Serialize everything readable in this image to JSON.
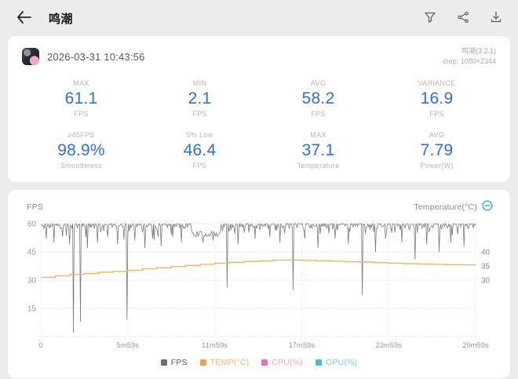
{
  "topbar": {
    "title": "鸣潮",
    "icons": [
      "filter",
      "share",
      "download"
    ]
  },
  "session_card": {
    "timestamp": "2026-03-31 10:43:56",
    "app_version": "鸣潮(3.2.1)",
    "crop_info": "crop: 1080×2344",
    "accent_color": "#2e6fd8",
    "stats_row1": [
      {
        "label": "MAX",
        "value": "61.1",
        "unit": "FPS"
      },
      {
        "label": "MIN",
        "value": "2.1",
        "unit": "FPS"
      },
      {
        "label": "AVG",
        "value": "58.2",
        "unit": "FPS"
      },
      {
        "label": "VARIANCE",
        "value": "16.9",
        "unit": "FPS"
      }
    ],
    "stats_row2": [
      {
        "label": "≥45FPS",
        "value": "98.9%",
        "unit": "Smoothness"
      },
      {
        "label": "5% Low",
        "value": "46.4",
        "unit": "FPS"
      },
      {
        "label": "MAX",
        "value": "37.1",
        "unit": "Temperature"
      },
      {
        "label": "AVG",
        "value": "7.79",
        "unit": "Power(W)"
      }
    ]
  },
  "chart_card": {
    "left_header": "FPS",
    "right_header": "Temperature(°C)",
    "collapse_icon_color": "#4aa8e8"
  },
  "chart_data": {
    "type": "line",
    "title": "FPS / Temperature over time",
    "x_ticks": [
      "0",
      "5m59s",
      "11m59s",
      "17m59s",
      "23m59s",
      "29m59s"
    ],
    "x_range_minutes": [
      0,
      30
    ],
    "grid": "dotted",
    "left_axis": {
      "title": "FPS",
      "ticks": [
        60,
        45,
        30,
        15
      ],
      "range": [
        0,
        60
      ]
    },
    "right_axis": {
      "title": "Temperature(°C)",
      "ticks": [
        40,
        35,
        30
      ]
    },
    "legend_position": "bottom",
    "legend": [
      {
        "label": "FPS",
        "swatch": "#6e6e6e",
        "text": "#5e5e5e"
      },
      {
        "label": "TEMP(°C)",
        "swatch": "#f0a050",
        "text": "#f3b37a"
      },
      {
        "label": "CPU(%)",
        "swatch": "#f06eb8",
        "text": "#f4a3c8"
      },
      {
        "label": "GPU(%)",
        "swatch": "#4db8e8",
        "text": "#7cc8ec"
      }
    ],
    "series": [
      {
        "name": "FPS",
        "color": "#7a7a7a",
        "visible": true,
        "baseline": 60,
        "low_band": {
          "from": 10.4,
          "to": 12.4,
          "level": 54.5
        },
        "drops": [
          [
            0.4,
            52
          ],
          [
            0.9,
            50
          ],
          [
            1.5,
            53
          ],
          [
            2.0,
            49
          ],
          [
            2.26,
            2
          ],
          [
            2.73,
            8
          ],
          [
            3.2,
            47
          ],
          [
            3.9,
            50
          ],
          [
            4.6,
            53
          ],
          [
            5.3,
            49
          ],
          [
            5.94,
            9
          ],
          [
            6.5,
            51
          ],
          [
            7.2,
            47
          ],
          [
            7.7,
            52
          ],
          [
            8.3,
            48
          ],
          [
            9.1,
            53
          ],
          [
            9.7,
            50
          ],
          [
            11.2,
            50
          ],
          [
            11.9,
            51
          ],
          [
            12.87,
            26
          ],
          [
            13.6,
            49
          ],
          [
            14.8,
            52
          ],
          [
            15.8,
            53
          ],
          [
            16.5,
            50
          ],
          [
            17.39,
            25
          ],
          [
            18.2,
            52
          ],
          [
            19.1,
            47
          ],
          [
            20.3,
            52
          ],
          [
            21.2,
            49
          ],
          [
            22.2,
            22
          ],
          [
            23.07,
            45
          ],
          [
            23.8,
            52
          ],
          [
            24.9,
            50
          ],
          [
            25.8,
            41
          ],
          [
            26.6,
            49
          ],
          [
            27.5,
            45
          ],
          [
            28.3,
            50
          ],
          [
            29.2,
            48
          ]
        ]
      },
      {
        "name": "TEMP(°C)",
        "color": "#e9b671",
        "visible": true,
        "points": [
          [
            0,
            31
          ],
          [
            1,
            31.5
          ],
          [
            2,
            32
          ],
          [
            3,
            32.4
          ],
          [
            4,
            32.8
          ],
          [
            5,
            33.1
          ],
          [
            6,
            33.5
          ],
          [
            7,
            34
          ],
          [
            8,
            34.4
          ],
          [
            9,
            34.8
          ],
          [
            10,
            35.2
          ],
          [
            11,
            35.6
          ],
          [
            12,
            36
          ],
          [
            13,
            36.3
          ],
          [
            14,
            36.6
          ],
          [
            15,
            36.8
          ],
          [
            16,
            37.1
          ],
          [
            17,
            37.1
          ],
          [
            18,
            37
          ],
          [
            19,
            36.9
          ],
          [
            20,
            36.7
          ],
          [
            21,
            36.5
          ],
          [
            22,
            36.4
          ],
          [
            23,
            36.2
          ],
          [
            24,
            36
          ],
          [
            25,
            35.8
          ],
          [
            26,
            35.7
          ],
          [
            27,
            35.6
          ],
          [
            28,
            35.5
          ],
          [
            29,
            35.4
          ],
          [
            30,
            35.3
          ]
        ]
      },
      {
        "name": "CPU(%)",
        "color": "#f06eb8",
        "visible": false,
        "points": []
      },
      {
        "name": "GPU(%)",
        "color": "#4db8e8",
        "visible": false,
        "points": []
      }
    ]
  }
}
